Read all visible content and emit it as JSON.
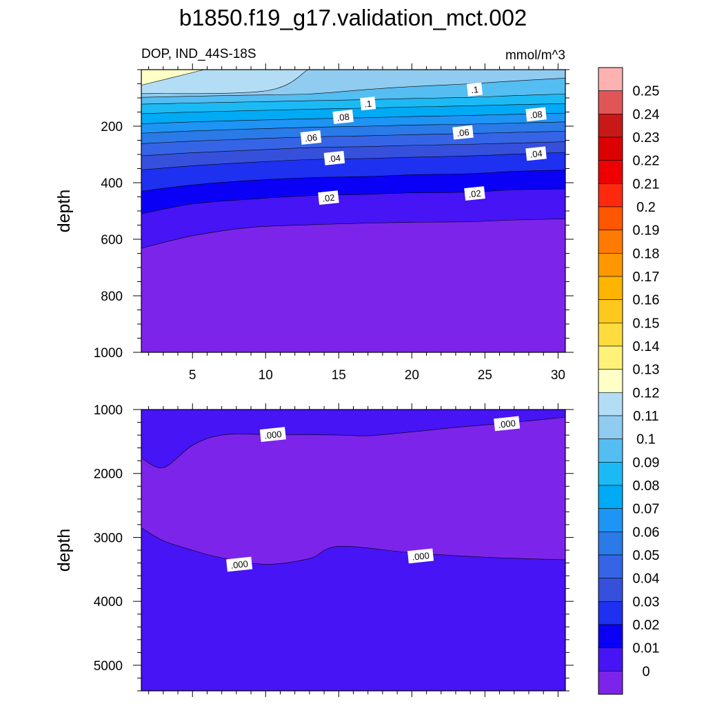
{
  "title": "b1850.f19_g17.validation_mct.002",
  "left_subtitle": "DOP, IND_44S-18S",
  "right_subtitle": "mmol/m^3",
  "colorbar": {
    "ticks": [
      "0.25",
      "0.24",
      "0.23",
      "0.22",
      "0.21",
      "0.2",
      "0.19",
      "0.18",
      "0.17",
      "0.16",
      "0.15",
      "0.14",
      "0.13",
      "0.12",
      "0.11",
      "0.1",
      "0.09",
      "0.08",
      "0.07",
      "0.06",
      "0.05",
      "0.04",
      "0.03",
      "0.02",
      "0.01",
      "0"
    ],
    "colors": [
      "#fdb2b2",
      "#e05656",
      "#c81818",
      "#dd0000",
      "#ee0000",
      "#ff2a0e",
      "#ff5600",
      "#ff7a00",
      "#ff9800",
      "#ffb400",
      "#ffc81c",
      "#ffdc3e",
      "#fff278",
      "#ffffc8",
      "#b3dcf5",
      "#90cbf0",
      "#54bdf2",
      "#1cbaf5",
      "#00aaf5",
      "#1e94f5",
      "#2a7ae8",
      "#3565e6",
      "#3650dc",
      "#1e30f0",
      "#0a00f5",
      "#4614f5",
      "#7d24ea"
    ]
  },
  "chart_data": [
    {
      "type": "contour",
      "panel": "upper",
      "xlabel": "",
      "ylabel": "depth",
      "xlim": [
        1.5,
        30.5
      ],
      "ylim": [
        1000,
        0
      ],
      "xticks": [
        5,
        10,
        15,
        20,
        25,
        30
      ],
      "yticks": [
        200,
        400,
        600,
        800,
        1000
      ],
      "contour_levels": [
        0,
        0.01,
        0.02,
        0.03,
        0.04,
        0.05,
        0.06,
        0.07,
        0.08,
        0.09,
        0.1,
        0.11,
        0.12,
        0.13
      ],
      "x": [
        1.5,
        5,
        9,
        13,
        17,
        20,
        24,
        27,
        30.5
      ],
      "contours": [
        {
          "level": 0.01,
          "depth": [
            632,
            588,
            558,
            549,
            543,
            540,
            538,
            532,
            528
          ]
        },
        {
          "level": 0.02,
          "depth": [
            510,
            475,
            458,
            446,
            441,
            436,
            433,
            425,
            422
          ]
        },
        {
          "level": 0.03,
          "depth": [
            430,
            408,
            392,
            382,
            378,
            372,
            368,
            360,
            355
          ]
        },
        {
          "level": 0.04,
          "depth": [
            355,
            340,
            328,
            318,
            314,
            310,
            305,
            299,
            293
          ]
        },
        {
          "level": 0.05,
          "depth": [
            305,
            294,
            285,
            276,
            272,
            268,
            264,
            260,
            255
          ]
        },
        {
          "level": 0.06,
          "depth": [
            262,
            253,
            245,
            238,
            234,
            230,
            226,
            222,
            218
          ]
        },
        {
          "level": 0.07,
          "depth": [
            225,
            217,
            210,
            204,
            200,
            196,
            193,
            189,
            185
          ]
        },
        {
          "level": 0.08,
          "depth": [
            192,
            185,
            179,
            174,
            170,
            166,
            162,
            158,
            154
          ]
        },
        {
          "level": 0.09,
          "depth": [
            156,
            150,
            145,
            140,
            136,
            132,
            128,
            124,
            120
          ]
        },
        {
          "level": 0.1,
          "depth": [
            122,
            118,
            114,
            110,
            106,
            102,
            98,
            92,
            86
          ]
        },
        {
          "level": 0.11,
          "depth": [
            98,
            94,
            90,
            86,
            70,
            60,
            50,
            40,
            30
          ]
        }
      ],
      "regions": [
        {
          "level": 0.12,
          "x": [
            1.5,
            12.9
          ],
          "depth_top": 0,
          "depth_bottom_at_x": [
            [
              1.5,
              85
            ],
            [
              10,
              75
            ],
            [
              12.9,
              0
            ]
          ]
        },
        {
          "level": 0.13,
          "x": [
            1.5,
            5.8
          ],
          "depth_top": 0,
          "depth_bottom_at_x": [
            [
              1.5,
              55
            ],
            [
              5.8,
              0
            ]
          ]
        }
      ],
      "contour_labels": [
        {
          "text": ".1",
          "x": 17,
          "depth": 120
        },
        {
          "text": ".1",
          "x": 24.3,
          "depth": 70
        },
        {
          "text": ".08",
          "x": 15.3,
          "depth": 167
        },
        {
          "text": ".08",
          "x": 28.5,
          "depth": 158
        },
        {
          "text": ".06",
          "x": 13.1,
          "depth": 240
        },
        {
          "text": ".06",
          "x": 23.5,
          "depth": 222
        },
        {
          "text": ".04",
          "x": 14.7,
          "depth": 313
        },
        {
          "text": ".04",
          "x": 28.5,
          "depth": 297
        },
        {
          "text": ".02",
          "x": 14.3,
          "depth": 453
        },
        {
          "text": ".02",
          "x": 24.3,
          "depth": 438
        }
      ]
    },
    {
      "type": "contour",
      "panel": "lower",
      "xlabel": "",
      "ylabel": "depth",
      "xlim": [
        1.5,
        30.5
      ],
      "ylim": [
        5400,
        1000
      ],
      "xticks": [
        5,
        10,
        15,
        20,
        25,
        30
      ],
      "yticks": [
        1000,
        2000,
        3000,
        4000,
        5000
      ],
      "contours": [
        {
          "level": 0.0,
          "name": "upper",
          "x": [
            1.5,
            3,
            5,
            7,
            10,
            15,
            17,
            20,
            23,
            27,
            30.5
          ],
          "depth": [
            1755,
            1910,
            1560,
            1400,
            1390,
            1400,
            1410,
            1350,
            1280,
            1200,
            1120
          ]
        },
        {
          "level": 0.0,
          "name": "lower",
          "x": [
            1.5,
            3,
            5,
            7,
            10,
            13,
            15,
            20,
            25,
            30.5
          ],
          "depth": [
            2850,
            3050,
            3200,
            3320,
            3420,
            3330,
            3140,
            3240,
            3310,
            3350
          ]
        }
      ],
      "contour_labels": [
        {
          "text": ".000",
          "x": 10.5,
          "depth": 1390
        },
        {
          "text": ".000",
          "x": 26.5,
          "depth": 1220
        },
        {
          "text": ".000",
          "x": 8.2,
          "depth": 3420
        },
        {
          "text": ".000",
          "x": 20.6,
          "depth": 3290
        }
      ]
    }
  ]
}
